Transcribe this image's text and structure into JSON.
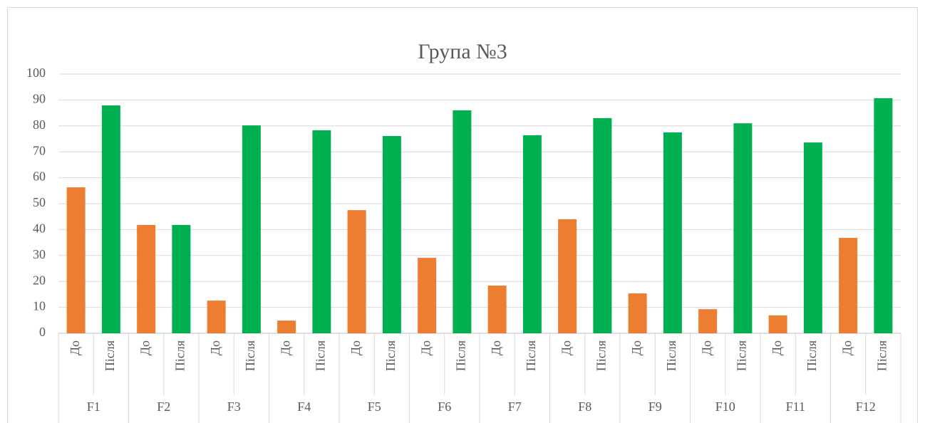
{
  "chart_data": {
    "type": "bar",
    "title": "Група №3",
    "categories": [
      "F1",
      "F2",
      "F3",
      "F4",
      "F5",
      "F6",
      "F7",
      "F8",
      "F9",
      "F10",
      "F11",
      "F12"
    ],
    "series": [
      {
        "name": "До",
        "color": "#ed7d31",
        "values": [
          56.3,
          41.8,
          12.6,
          4.9,
          47.5,
          29.1,
          18.4,
          44,
          15.4,
          9.3,
          6.9,
          36.8
        ]
      },
      {
        "name": "Після",
        "color": "#00b050",
        "values": [
          87.9,
          41.8,
          80.2,
          78.3,
          76.1,
          86,
          76.4,
          83,
          77.5,
          81,
          73.6,
          90.7
        ]
      }
    ],
    "ylim": [
      0,
      100
    ],
    "yticks": [
      0,
      10,
      20,
      30,
      40,
      50,
      60,
      70,
      80,
      90,
      100
    ],
    "grid": true
  }
}
